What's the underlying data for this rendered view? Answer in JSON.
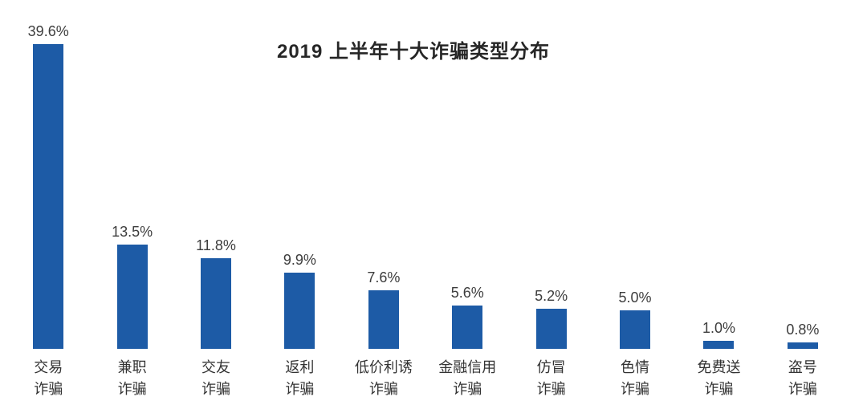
{
  "title": "2019 上半年十大诈骗类型分布",
  "chart_data": {
    "type": "bar",
    "title": "2019 上半年十大诈骗类型分布",
    "categories": [
      "交易\n诈骗",
      "兼职\n诈骗",
      "交友\n诈骗",
      "返利\n诈骗",
      "低价利诱\n诈骗",
      "金融信用\n诈骗",
      "仿冒\n诈骗",
      "色情\n诈骗",
      "免费送\n诈骗",
      "盗号\n诈骗"
    ],
    "values": [
      39.6,
      13.5,
      11.8,
      9.9,
      7.6,
      5.6,
      5.2,
      5.0,
      1.0,
      0.8
    ],
    "value_labels": [
      "39.6%",
      "13.5%",
      "11.8%",
      "9.9%",
      "7.6%",
      "5.6%",
      "5.2%",
      "5.0%",
      "1.0%",
      "0.8%"
    ],
    "xlabel": "",
    "ylabel": "",
    "ylim": [
      0,
      40
    ],
    "grid": false,
    "legend": false,
    "bar_color": "#1d5ba6",
    "value_label_color": "#3d3d3d",
    "category_label_color": "#333333",
    "background_color": "#ffffff"
  }
}
